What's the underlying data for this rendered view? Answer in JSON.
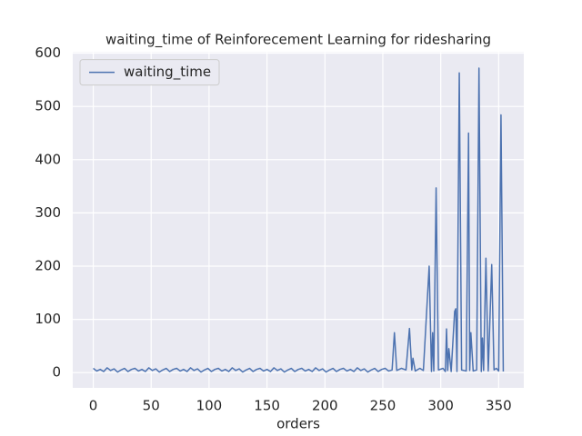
{
  "chart_data": {
    "type": "line",
    "title": "waiting_time of Reinforecement Learning for ridesharing",
    "xlabel": "orders",
    "x": [
      0,
      3,
      6,
      9,
      12,
      15,
      18,
      21,
      24,
      27,
      30,
      33,
      36,
      39,
      42,
      45,
      48,
      51,
      54,
      57,
      60,
      63,
      66,
      69,
      72,
      75,
      78,
      81,
      84,
      87,
      90,
      93,
      96,
      99,
      102,
      105,
      108,
      111,
      114,
      117,
      120,
      123,
      126,
      129,
      132,
      135,
      138,
      141,
      144,
      147,
      150,
      153,
      156,
      159,
      162,
      165,
      168,
      171,
      174,
      177,
      180,
      183,
      186,
      189,
      192,
      195,
      198,
      201,
      204,
      207,
      210,
      213,
      216,
      219,
      222,
      225,
      228,
      231,
      234,
      237,
      240,
      243,
      246,
      249,
      252,
      255,
      258,
      260,
      262,
      266,
      270,
      273,
      275,
      276,
      278,
      282,
      285,
      290,
      292,
      293,
      294,
      296,
      298,
      302,
      304,
      305,
      306,
      307,
      309,
      312,
      313,
      314,
      316,
      318,
      322,
      324,
      325,
      326,
      328,
      331,
      333,
      335,
      336,
      337,
      339,
      341,
      344,
      346,
      348,
      350,
      352,
      354
    ],
    "series": [
      {
        "name": "waiting_time",
        "color": "#4c72b0",
        "values": [
          8,
          3,
          6,
          2,
          9,
          4,
          7,
          1,
          5,
          8,
          2,
          6,
          8,
          3,
          6,
          2,
          9,
          4,
          7,
          1,
          5,
          8,
          2,
          6,
          8,
          3,
          6,
          2,
          9,
          4,
          7,
          1,
          5,
          8,
          2,
          6,
          8,
          3,
          6,
          2,
          9,
          4,
          7,
          1,
          5,
          8,
          2,
          6,
          8,
          3,
          6,
          2,
          9,
          4,
          7,
          1,
          5,
          8,
          2,
          6,
          8,
          3,
          6,
          2,
          9,
          4,
          7,
          1,
          5,
          8,
          2,
          6,
          8,
          3,
          6,
          2,
          9,
          4,
          7,
          1,
          5,
          8,
          2,
          6,
          8,
          3,
          5,
          75,
          4,
          8,
          5,
          83,
          5,
          27,
          3,
          8,
          4,
          200,
          2,
          75,
          3,
          347,
          5,
          8,
          2,
          82,
          4,
          45,
          2,
          115,
          120,
          2,
          563,
          5,
          3,
          450,
          4,
          75,
          3,
          5,
          572,
          2,
          65,
          4,
          215,
          3,
          203,
          5,
          8,
          3,
          484,
          2
        ]
      }
    ],
    "xlim": [
      -17.7,
      371.7
    ],
    "ylim": [
      -28.65,
      601.65
    ],
    "xticks": [
      0,
      50,
      100,
      150,
      200,
      250,
      300,
      350
    ],
    "yticks": [
      0,
      100,
      200,
      300,
      400,
      500,
      600
    ],
    "grid": true,
    "legend": "upper-left"
  }
}
